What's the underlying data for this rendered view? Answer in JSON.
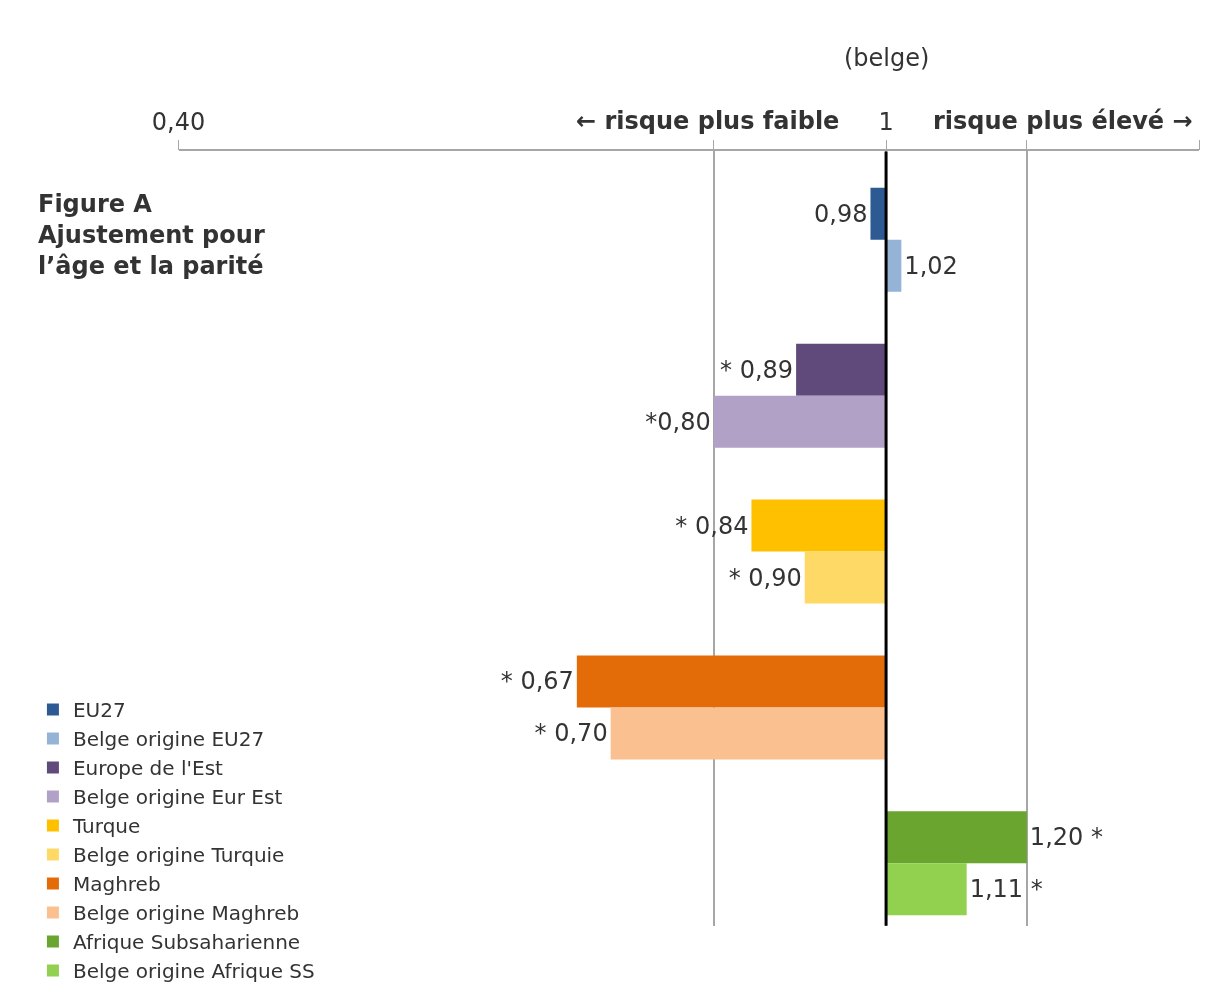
{
  "chart_data": {
    "type": "bar",
    "orientation": "horizontal",
    "log": "x",
    "title": "Figure A\nAjustement pour\nl’âge et la parité",
    "categories": [
      null,
      null,
      null,
      null,
      null,
      null,
      null,
      null,
      null,
      null
    ],
    "series": [
      {
        "name": "EU27",
        "color": "#2e5a94",
        "base": [
          1,
          null,
          null,
          null,
          null,
          null,
          null,
          null,
          null,
          null
        ],
        "values": [
          -0.02,
          null,
          null,
          null,
          null,
          null,
          null,
          null,
          null,
          null
        ],
        "value_labels": [
          "0,98",
          null,
          null,
          null,
          null,
          null,
          null,
          null,
          null,
          null
        ]
      },
      {
        "name": "Belge origine EU27",
        "color": "#95b3d7",
        "base": [
          null,
          1,
          null,
          null,
          null,
          null,
          null,
          null,
          null,
          null
        ],
        "values": [
          null,
          0.02,
          null,
          null,
          null,
          null,
          null,
          null,
          null,
          null
        ],
        "value_labels": [
          null,
          "1,02",
          null,
          null,
          null,
          null,
          null,
          null,
          null,
          null
        ]
      },
      {
        "name": "Europe de l'Est",
        "color": "#5f4a7b",
        "base": [
          null,
          null,
          1,
          null,
          null,
          null,
          null,
          null,
          null,
          null
        ],
        "values": [
          null,
          null,
          -0.11,
          null,
          null,
          null,
          null,
          null,
          null,
          null
        ],
        "value_labels": [
          null,
          null,
          "* 0,89",
          null,
          null,
          null,
          null,
          null,
          null,
          null
        ]
      },
      {
        "name": "Belge origine Eur Est",
        "color": "#b2a1c7",
        "base": [
          null,
          null,
          null,
          1,
          null,
          null,
          null,
          null,
          null,
          null
        ],
        "values": [
          null,
          null,
          null,
          -0.2,
          null,
          null,
          null,
          null,
          null,
          null
        ],
        "value_labels": [
          null,
          null,
          null,
          "*0,80",
          null,
          null,
          null,
          null,
          null,
          null
        ]
      },
      {
        "name": "Turque",
        "color": "#ffc000",
        "base": [
          null,
          null,
          null,
          null,
          1,
          null,
          null,
          null,
          null,
          null
        ],
        "values": [
          null,
          null,
          null,
          null,
          -0.16,
          null,
          null,
          null,
          null,
          null
        ],
        "value_labels": [
          null,
          null,
          null,
          null,
          "* 0,84",
          null,
          null,
          null,
          null,
          null
        ]
      },
      {
        "name": "Belge origine Turquie",
        "color": "#ffd966",
        "base": [
          null,
          null,
          null,
          null,
          null,
          1,
          null,
          null,
          null,
          null
        ],
        "values": [
          null,
          null,
          null,
          null,
          null,
          -0.1,
          null,
          null,
          null,
          null
        ],
        "value_labels": [
          null,
          null,
          null,
          null,
          null,
          "* 0,90",
          null,
          null,
          null,
          null
        ]
      },
      {
        "name": "Maghreb",
        "color": "#e36c09",
        "base": [
          null,
          null,
          null,
          null,
          null,
          null,
          1,
          null,
          null,
          null
        ],
        "values": [
          null,
          null,
          null,
          null,
          null,
          null,
          -0.33,
          null,
          null,
          null
        ],
        "value_labels": [
          null,
          null,
          null,
          null,
          null,
          null,
          "* 0,67",
          null,
          null,
          null
        ]
      },
      {
        "name": "Belge origine Maghreb",
        "color": "#fac090",
        "base": [
          null,
          null,
          null,
          null,
          null,
          null,
          null,
          1,
          null,
          null
        ],
        "values": [
          null,
          null,
          null,
          null,
          null,
          null,
          null,
          -0.3,
          null,
          null
        ],
        "value_labels": [
          null,
          null,
          null,
          null,
          null,
          null,
          null,
          "* 0,70",
          null,
          null
        ]
      },
      {
        "name": "Afrique Subsaharienne",
        "color": "#6aa52f",
        "base": [
          null,
          null,
          null,
          null,
          null,
          null,
          null,
          null,
          1,
          null
        ],
        "values": [
          null,
          null,
          null,
          null,
          null,
          null,
          null,
          null,
          0.2,
          null
        ],
        "value_labels": [
          null,
          null,
          null,
          null,
          null,
          null,
          null,
          null,
          "1,20 *",
          null
        ]
      },
      {
        "name": "Belge origine Afrique SS",
        "color": "#92d050",
        "base": [
          null,
          null,
          null,
          null,
          null,
          null,
          null,
          null,
          null,
          1
        ],
        "values": [
          null,
          null,
          null,
          null,
          null,
          null,
          null,
          null,
          null,
          0.11
        ],
        "value_labels": [
          null,
          null,
          null,
          null,
          null,
          null,
          null,
          null,
          null,
          "1,11 *"
        ]
      }
    ],
    "xlim": [
      0.4,
      1.5
    ],
    "xticks": [
      {
        "value": 0.4,
        "label": "0,40"
      },
      {
        "value": 0.8,
        "label": null
      },
      {
        "value": 1,
        "label": "1"
      },
      {
        "value": 1.2,
        "label": null
      },
      {
        "value": 1.5,
        "label": null
      }
    ],
    "tick_labels": "x",
    "grid": "x",
    "legend": "bottom left",
    "ref_lines": [
      {
        "axis": "x",
        "value": 1,
        "color": "#000000"
      }
    ],
    "annotations": [
      "(belge)",
      "← risque plus faible",
      "risque plus élevé →"
    ]
  }
}
